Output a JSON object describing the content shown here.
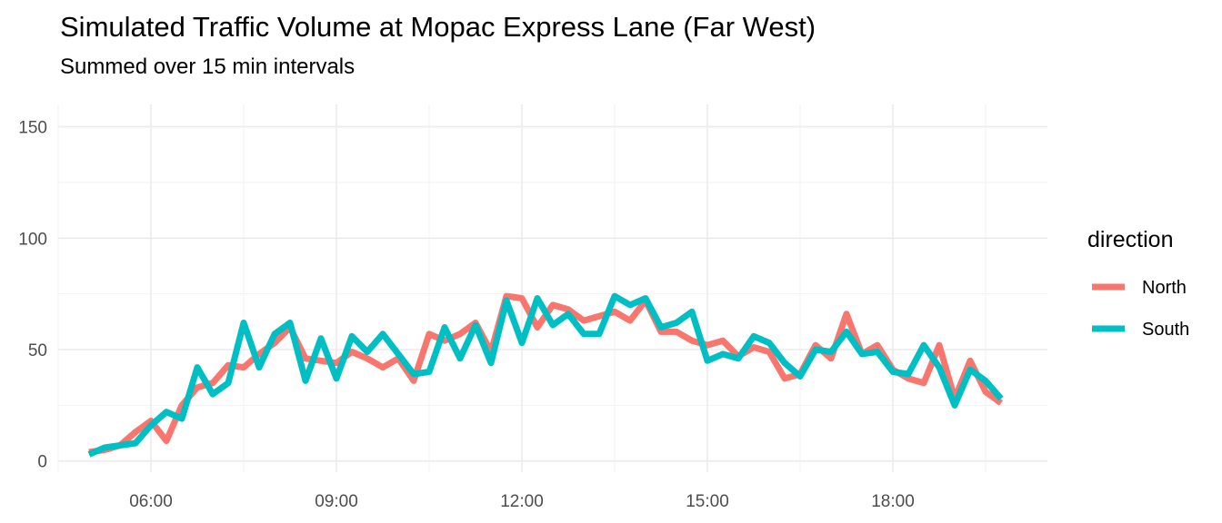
{
  "title": "Simulated Traffic Volume at Mopac Express Lane (Far West)",
  "subtitle": "Summed over 15 min intervals",
  "legend": {
    "title": "direction"
  },
  "chart_data": {
    "type": "line",
    "title": "Simulated Traffic Volume at Mopac Express Lane (Far West)",
    "subtitle": "Summed over 15 min intervals",
    "xlabel": "",
    "ylabel": "",
    "x_unit": "time of day (hours)",
    "xlim": [
      4.5,
      20.5
    ],
    "ylim": [
      -5,
      160
    ],
    "x_ticks": [
      {
        "value": 6,
        "label": "06:00"
      },
      {
        "value": 9,
        "label": "09:00"
      },
      {
        "value": 12,
        "label": "12:00"
      },
      {
        "value": 15,
        "label": "15:00"
      },
      {
        "value": 18,
        "label": "18:00"
      }
    ],
    "y_ticks": [
      0,
      50,
      100,
      150
    ],
    "grid": true,
    "legend_position": "right",
    "legend_title": "direction",
    "series": [
      {
        "name": "North",
        "color": "#F8766D",
        "points": [
          [
            5.0,
            4
          ],
          [
            5.25,
            5
          ],
          [
            5.5,
            7
          ],
          [
            5.75,
            13
          ],
          [
            6.0,
            18
          ],
          [
            6.25,
            9
          ],
          [
            6.5,
            25
          ],
          [
            6.75,
            33
          ],
          [
            7.0,
            35
          ],
          [
            7.25,
            43
          ],
          [
            7.5,
            42
          ],
          [
            7.75,
            48
          ],
          [
            8.0,
            53
          ],
          [
            8.25,
            60
          ],
          [
            8.5,
            46
          ],
          [
            8.75,
            45
          ],
          [
            9.0,
            44
          ],
          [
            9.25,
            49
          ],
          [
            9.5,
            46
          ],
          [
            9.75,
            42
          ],
          [
            10.0,
            46
          ],
          [
            10.25,
            36
          ],
          [
            10.5,
            57
          ],
          [
            10.75,
            54
          ],
          [
            11.0,
            57
          ],
          [
            11.25,
            62
          ],
          [
            11.5,
            49
          ],
          [
            11.75,
            74
          ],
          [
            12.0,
            73
          ],
          [
            12.25,
            60
          ],
          [
            12.5,
            70
          ],
          [
            12.75,
            68
          ],
          [
            13.0,
            63
          ],
          [
            13.25,
            65
          ],
          [
            13.5,
            67
          ],
          [
            13.75,
            63
          ],
          [
            14.0,
            72
          ],
          [
            14.25,
            58
          ],
          [
            14.5,
            58
          ],
          [
            14.75,
            54
          ],
          [
            15.0,
            52
          ],
          [
            15.25,
            54
          ],
          [
            15.5,
            47
          ],
          [
            15.75,
            51
          ],
          [
            16.0,
            49
          ],
          [
            16.25,
            37
          ],
          [
            16.5,
            39
          ],
          [
            16.75,
            52
          ],
          [
            17.0,
            46
          ],
          [
            17.25,
            66
          ],
          [
            17.5,
            48
          ],
          [
            17.75,
            52
          ],
          [
            18.0,
            41
          ],
          [
            18.25,
            37
          ],
          [
            18.5,
            35
          ],
          [
            18.75,
            52
          ],
          [
            19.0,
            28
          ],
          [
            19.25,
            45
          ],
          [
            19.5,
            31
          ],
          [
            19.75,
            26
          ]
        ]
      },
      {
        "name": "South",
        "color": "#00BFC4",
        "points": [
          [
            5.0,
            3
          ],
          [
            5.25,
            6
          ],
          [
            5.5,
            7
          ],
          [
            5.75,
            8
          ],
          [
            6.0,
            16
          ],
          [
            6.25,
            22
          ],
          [
            6.5,
            19
          ],
          [
            6.75,
            42
          ],
          [
            7.0,
            30
          ],
          [
            7.25,
            35
          ],
          [
            7.5,
            62
          ],
          [
            7.75,
            42
          ],
          [
            8.0,
            57
          ],
          [
            8.25,
            62
          ],
          [
            8.5,
            36
          ],
          [
            8.75,
            55
          ],
          [
            9.0,
            37
          ],
          [
            9.25,
            56
          ],
          [
            9.5,
            49
          ],
          [
            9.75,
            57
          ],
          [
            10.0,
            48
          ],
          [
            10.25,
            39
          ],
          [
            10.5,
            40
          ],
          [
            10.75,
            60
          ],
          [
            11.0,
            46
          ],
          [
            11.25,
            61
          ],
          [
            11.5,
            44
          ],
          [
            11.75,
            72
          ],
          [
            12.0,
            53
          ],
          [
            12.25,
            73
          ],
          [
            12.5,
            61
          ],
          [
            12.75,
            66
          ],
          [
            13.0,
            57
          ],
          [
            13.25,
            57
          ],
          [
            13.5,
            74
          ],
          [
            13.75,
            70
          ],
          [
            14.0,
            73
          ],
          [
            14.25,
            60
          ],
          [
            14.5,
            62
          ],
          [
            14.75,
            67
          ],
          [
            15.0,
            45
          ],
          [
            15.25,
            48
          ],
          [
            15.5,
            46
          ],
          [
            15.75,
            56
          ],
          [
            16.0,
            53
          ],
          [
            16.25,
            44
          ],
          [
            16.5,
            38
          ],
          [
            16.75,
            50
          ],
          [
            17.0,
            49
          ],
          [
            17.25,
            58
          ],
          [
            17.5,
            48
          ],
          [
            17.75,
            49
          ],
          [
            18.0,
            40
          ],
          [
            18.25,
            39
          ],
          [
            18.5,
            52
          ],
          [
            18.75,
            42
          ],
          [
            19.0,
            25
          ],
          [
            19.25,
            41
          ],
          [
            19.5,
            36
          ],
          [
            19.75,
            28
          ]
        ]
      }
    ]
  }
}
